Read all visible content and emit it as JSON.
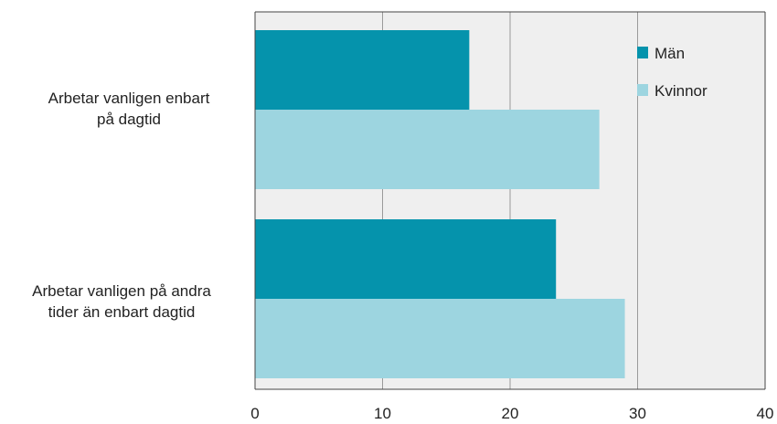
{
  "chart_data": {
    "type": "bar",
    "orientation": "horizontal",
    "categories": [
      [
        "Arbetar vanligen enbart",
        "på dagtid"
      ],
      [
        "Arbetar vanligen på andra",
        "tider än enbart dagtid"
      ]
    ],
    "series": [
      {
        "name": "Män",
        "values": [
          16.8,
          23.6
        ]
      },
      {
        "name": "Kvinnor",
        "values": [
          27.0,
          29.0
        ]
      }
    ],
    "xlim": [
      0,
      40
    ],
    "xticks": [
      "0",
      "10",
      "20",
      "30",
      "40"
    ],
    "grid": true,
    "legend_position": "top-right",
    "colors": {
      "Män": "#0593ac",
      "Kvinnor": "#9dd5e0",
      "plot_background": "#efefef",
      "gridline": "#9a9a9a"
    }
  }
}
